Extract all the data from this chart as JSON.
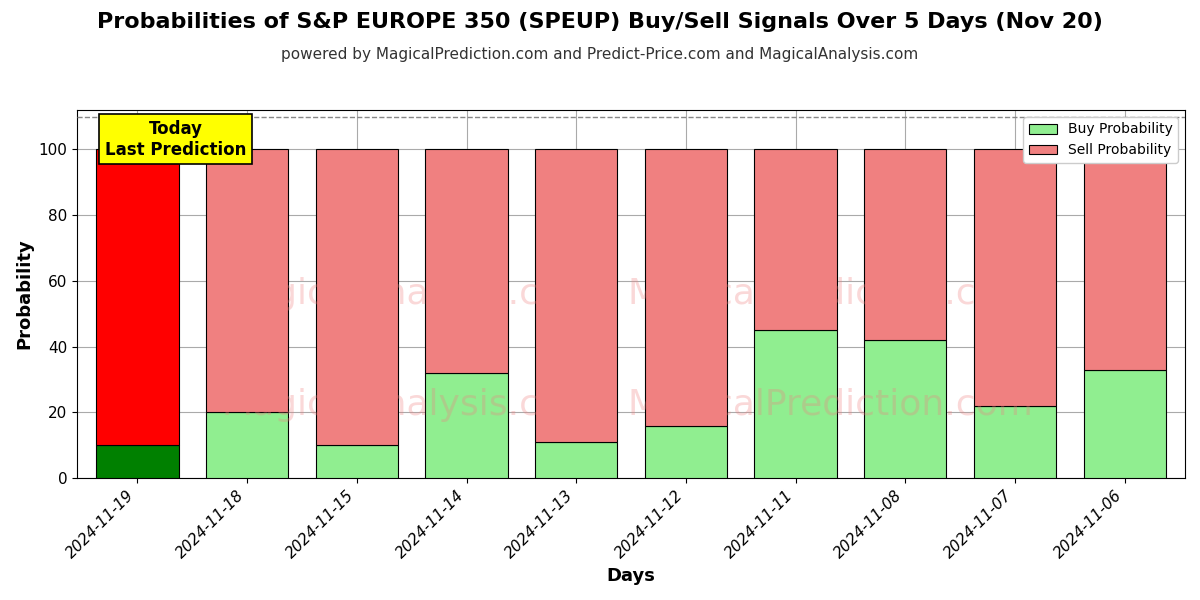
{
  "title": "Probabilities of S&P EUROPE 350 (SPEUP) Buy/Sell Signals Over 5 Days (Nov 20)",
  "subtitle": "powered by MagicalPrediction.com and Predict-Price.com and MagicalAnalysis.com",
  "xlabel": "Days",
  "ylabel": "Probability",
  "categories": [
    "2024-11-19",
    "2024-11-18",
    "2024-11-15",
    "2024-11-14",
    "2024-11-13",
    "2024-11-12",
    "2024-11-11",
    "2024-11-08",
    "2024-11-07",
    "2024-11-06"
  ],
  "buy_values": [
    10,
    20,
    10,
    32,
    11,
    16,
    45,
    42,
    22,
    33
  ],
  "sell_values": [
    90,
    80,
    90,
    68,
    89,
    84,
    55,
    58,
    78,
    67
  ],
  "first_bar_buy_color": "#008000",
  "first_bar_sell_color": "#ff0000",
  "other_buy_color": "#90ee90",
  "other_sell_color": "#f08080",
  "bar_edge_color": "#000000",
  "ylim": [
    0,
    112
  ],
  "dashed_line_y": 110,
  "today_box_color": "#ffff00",
  "today_box_text": "Today\nLast Prediction",
  "legend_buy_color": "#90ee90",
  "legend_sell_color": "#f08080",
  "background_color": "#ffffff",
  "grid_color": "#aaaaaa",
  "title_fontsize": 16,
  "subtitle_fontsize": 11,
  "label_fontsize": 13,
  "tick_fontsize": 11,
  "bar_width": 0.75,
  "watermark1": "MagicalAnalysis.com",
  "watermark2": "MagicalPrediction.com"
}
